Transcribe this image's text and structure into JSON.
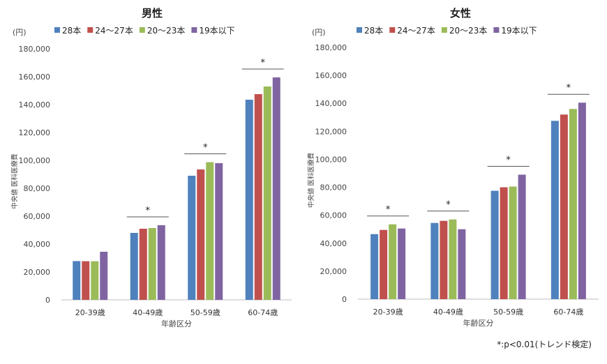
{
  "footnote": "*:p<0.01(トレンド検定)",
  "chart_data": [
    {
      "type": "bar",
      "title": "男性",
      "unit_label": "(円)",
      "xlabel": "年齢区分",
      "ylabel": "中央値 医科医療費",
      "ylim": [
        0,
        180000
      ],
      "yticks": [
        "0",
        "20,000",
        "40,000",
        "60,000",
        "80,000",
        "100,000",
        "120,000",
        "140,000",
        "160,000",
        "180,000"
      ],
      "grid": false,
      "legend": "top",
      "categories": [
        "20-39歳",
        "40-49歳",
        "50-59歳",
        "60-74歳"
      ],
      "series": [
        {
          "name": "28本",
          "color": "#4F81BD",
          "values": [
            27800,
            48000,
            89000,
            143500
          ]
        },
        {
          "name": "24～27本",
          "color": "#C0504D",
          "values": [
            27700,
            51000,
            93500,
            147500
          ]
        },
        {
          "name": "20～23本",
          "color": "#9BBB59",
          "values": [
            27700,
            51500,
            98700,
            153000
          ]
        },
        {
          "name": "19本以下",
          "color": "#8064A2",
          "values": [
            34500,
            53500,
            98000,
            159500
          ]
        }
      ],
      "significance": [
        false,
        true,
        true,
        true
      ],
      "sig_mark": "*"
    },
    {
      "type": "bar",
      "title": "女性",
      "unit_label": "(円)",
      "xlabel": "年齢区分",
      "ylabel": "中央値 医科医療費",
      "ylim": [
        0,
        180000
      ],
      "yticks": [
        "0",
        "20,000",
        "40,000",
        "60,000",
        "80,000",
        "100,000",
        "120,000",
        "140,000",
        "160,000",
        "180,000"
      ],
      "grid": false,
      "legend": "top",
      "categories": [
        "20-39歳",
        "40-49歳",
        "50-59歳",
        "60-74歳"
      ],
      "series": [
        {
          "name": "28本",
          "color": "#4F81BD",
          "values": [
            46500,
            54500,
            77500,
            127500
          ]
        },
        {
          "name": "24～27本",
          "color": "#C0504D",
          "values": [
            49500,
            56000,
            80000,
            132000
          ]
        },
        {
          "name": "20～23本",
          "color": "#9BBB59",
          "values": [
            53500,
            57000,
            80500,
            136000
          ]
        },
        {
          "name": "19本以下",
          "color": "#8064A2",
          "values": [
            50500,
            50000,
            89000,
            140500
          ]
        }
      ],
      "significance": [
        true,
        true,
        true,
        true
      ],
      "sig_mark": "*"
    }
  ]
}
